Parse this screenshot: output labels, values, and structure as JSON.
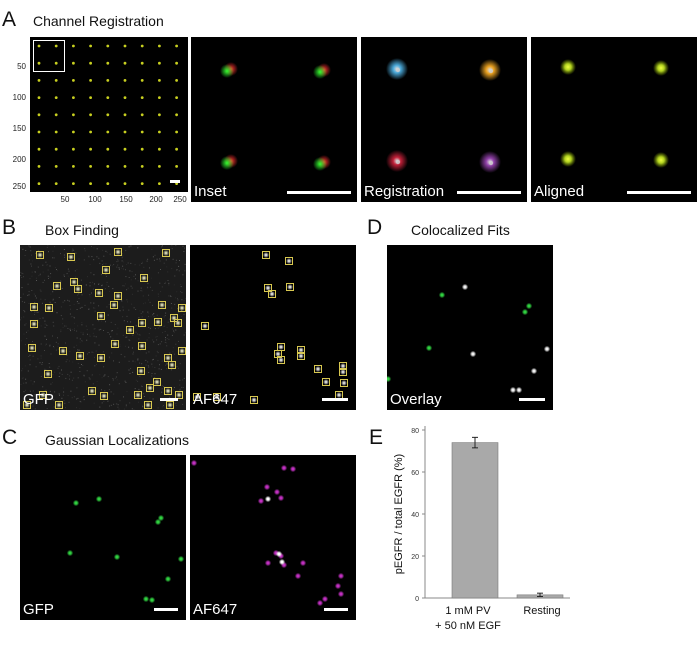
{
  "panels": {
    "A": {
      "letter": "A",
      "title": "Channel Registration",
      "overview": {
        "y_ticks": [
          "50",
          "100",
          "150",
          "200",
          "250"
        ],
        "x_ticks": [
          "50",
          "100",
          "150",
          "200",
          "250"
        ],
        "dot_color": "#c8d020"
      },
      "inset_label": "Inset",
      "registration_label": "Registration",
      "aligned_label": "Aligned",
      "registration_colors": [
        "#4aa8d8",
        "#e8a020",
        "#c02038",
        "#9040a8"
      ]
    },
    "B": {
      "letter": "B",
      "title": "Box Finding",
      "left_label": "GFP",
      "right_label": "AF647",
      "box_color": "#d8c850"
    },
    "C": {
      "letter": "C",
      "title": "Gaussian Localizations",
      "left_label": "GFP",
      "right_label": "AF647",
      "gfp_color": "#30d040",
      "af647_color": "#c030c0"
    },
    "D": {
      "letter": "D",
      "title": "Colocalized Fits",
      "label": "Overlay"
    },
    "E": {
      "letter": "E",
      "chart_data": {
        "type": "bar",
        "categories": [
          "1 mM PV\n+ 50 nM EGF",
          "Resting"
        ],
        "category_lines": [
          [
            "1 mM PV",
            "+ 50 nM EGF"
          ],
          [
            "Resting"
          ]
        ],
        "values": [
          74,
          1.5
        ],
        "errors": [
          2.5,
          0.8
        ],
        "ylabel": "pEGFR / total EGFR (%)",
        "ylim": [
          0,
          80
        ],
        "yticks": [
          0,
          20,
          40,
          60,
          80
        ],
        "bar_color": "#a9a9a9"
      }
    }
  }
}
